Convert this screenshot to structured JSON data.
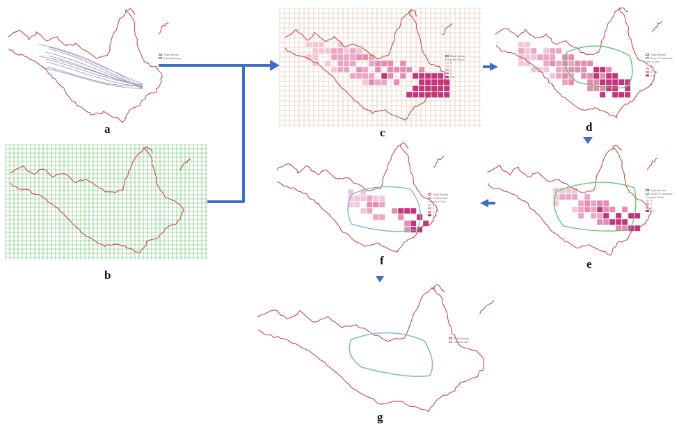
{
  "panels": [
    {
      "id": "a",
      "label": "a",
      "legend": [
        "State Border",
        "Backtrajectory"
      ]
    },
    {
      "id": "b",
      "label": "b",
      "legend": []
    },
    {
      "id": "c",
      "label": "c",
      "legend": [
        "State Border",
        "Endpoint Count",
        "0",
        "1",
        "2",
        "3",
        "4-6"
      ]
    },
    {
      "id": "d",
      "label": "d",
      "legend": [
        "State Border",
        "Zone Of Influence",
        "Grid Count",
        "1",
        "2",
        "3",
        "4-6"
      ]
    },
    {
      "id": "e",
      "label": "e",
      "legend": [
        "State Border",
        "Zone Of Influence",
        "Cropped Grids",
        "1",
        "2",
        "3",
        "4-6"
      ]
    },
    {
      "id": "f",
      "label": "f",
      "legend": [
        "State Border",
        "Convex hull",
        "Cropped Grids",
        "1",
        "2",
        "3",
        "4-6"
      ]
    },
    {
      "id": "g",
      "label": "g",
      "legend": [
        "State Border",
        "Convex hull"
      ]
    }
  ],
  "colors": {
    "border": "#c24a4a",
    "trajectory": "#8a7fb0",
    "grid_green": "#5fb85f",
    "grid_tan": "#d9b8a0",
    "zone_green": "#6bbf7a",
    "hull_blue": "#7fb3d8",
    "arrow": "#3f6fc4",
    "cell_light": "#f3c8d6",
    "cell_mid": "#e58cb0",
    "cell_dark": "#c2357a"
  }
}
